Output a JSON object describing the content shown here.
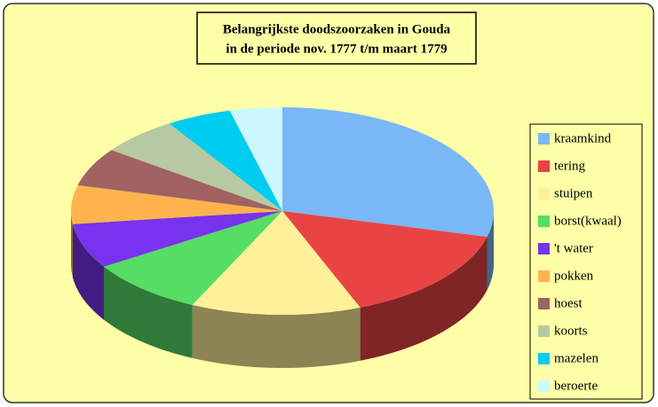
{
  "chart_data": {
    "type": "pie3d",
    "title": [
      "Belangrijkste doodszoorzaken in Gouda",
      "in de periode nov. 1777 t/m maart 1779"
    ],
    "categories": [
      "kraamkind",
      "tering",
      "stuipen",
      "borst(kwaal)",
      "'t water",
      "pokken",
      "hoest",
      "koorts",
      "mazelen",
      "beroerte"
    ],
    "values": [
      29,
      15,
      13,
      9,
      7,
      6,
      6,
      6,
      5,
      4
    ],
    "colors": [
      "#7ab8f7",
      "#e84444",
      "#fff099",
      "#55dd66",
      "#7733ee",
      "#ffb34d",
      "#a06262",
      "#b7c9a2",
      "#00ccf2",
      "#ccf8ff"
    ],
    "legend": "right"
  }
}
